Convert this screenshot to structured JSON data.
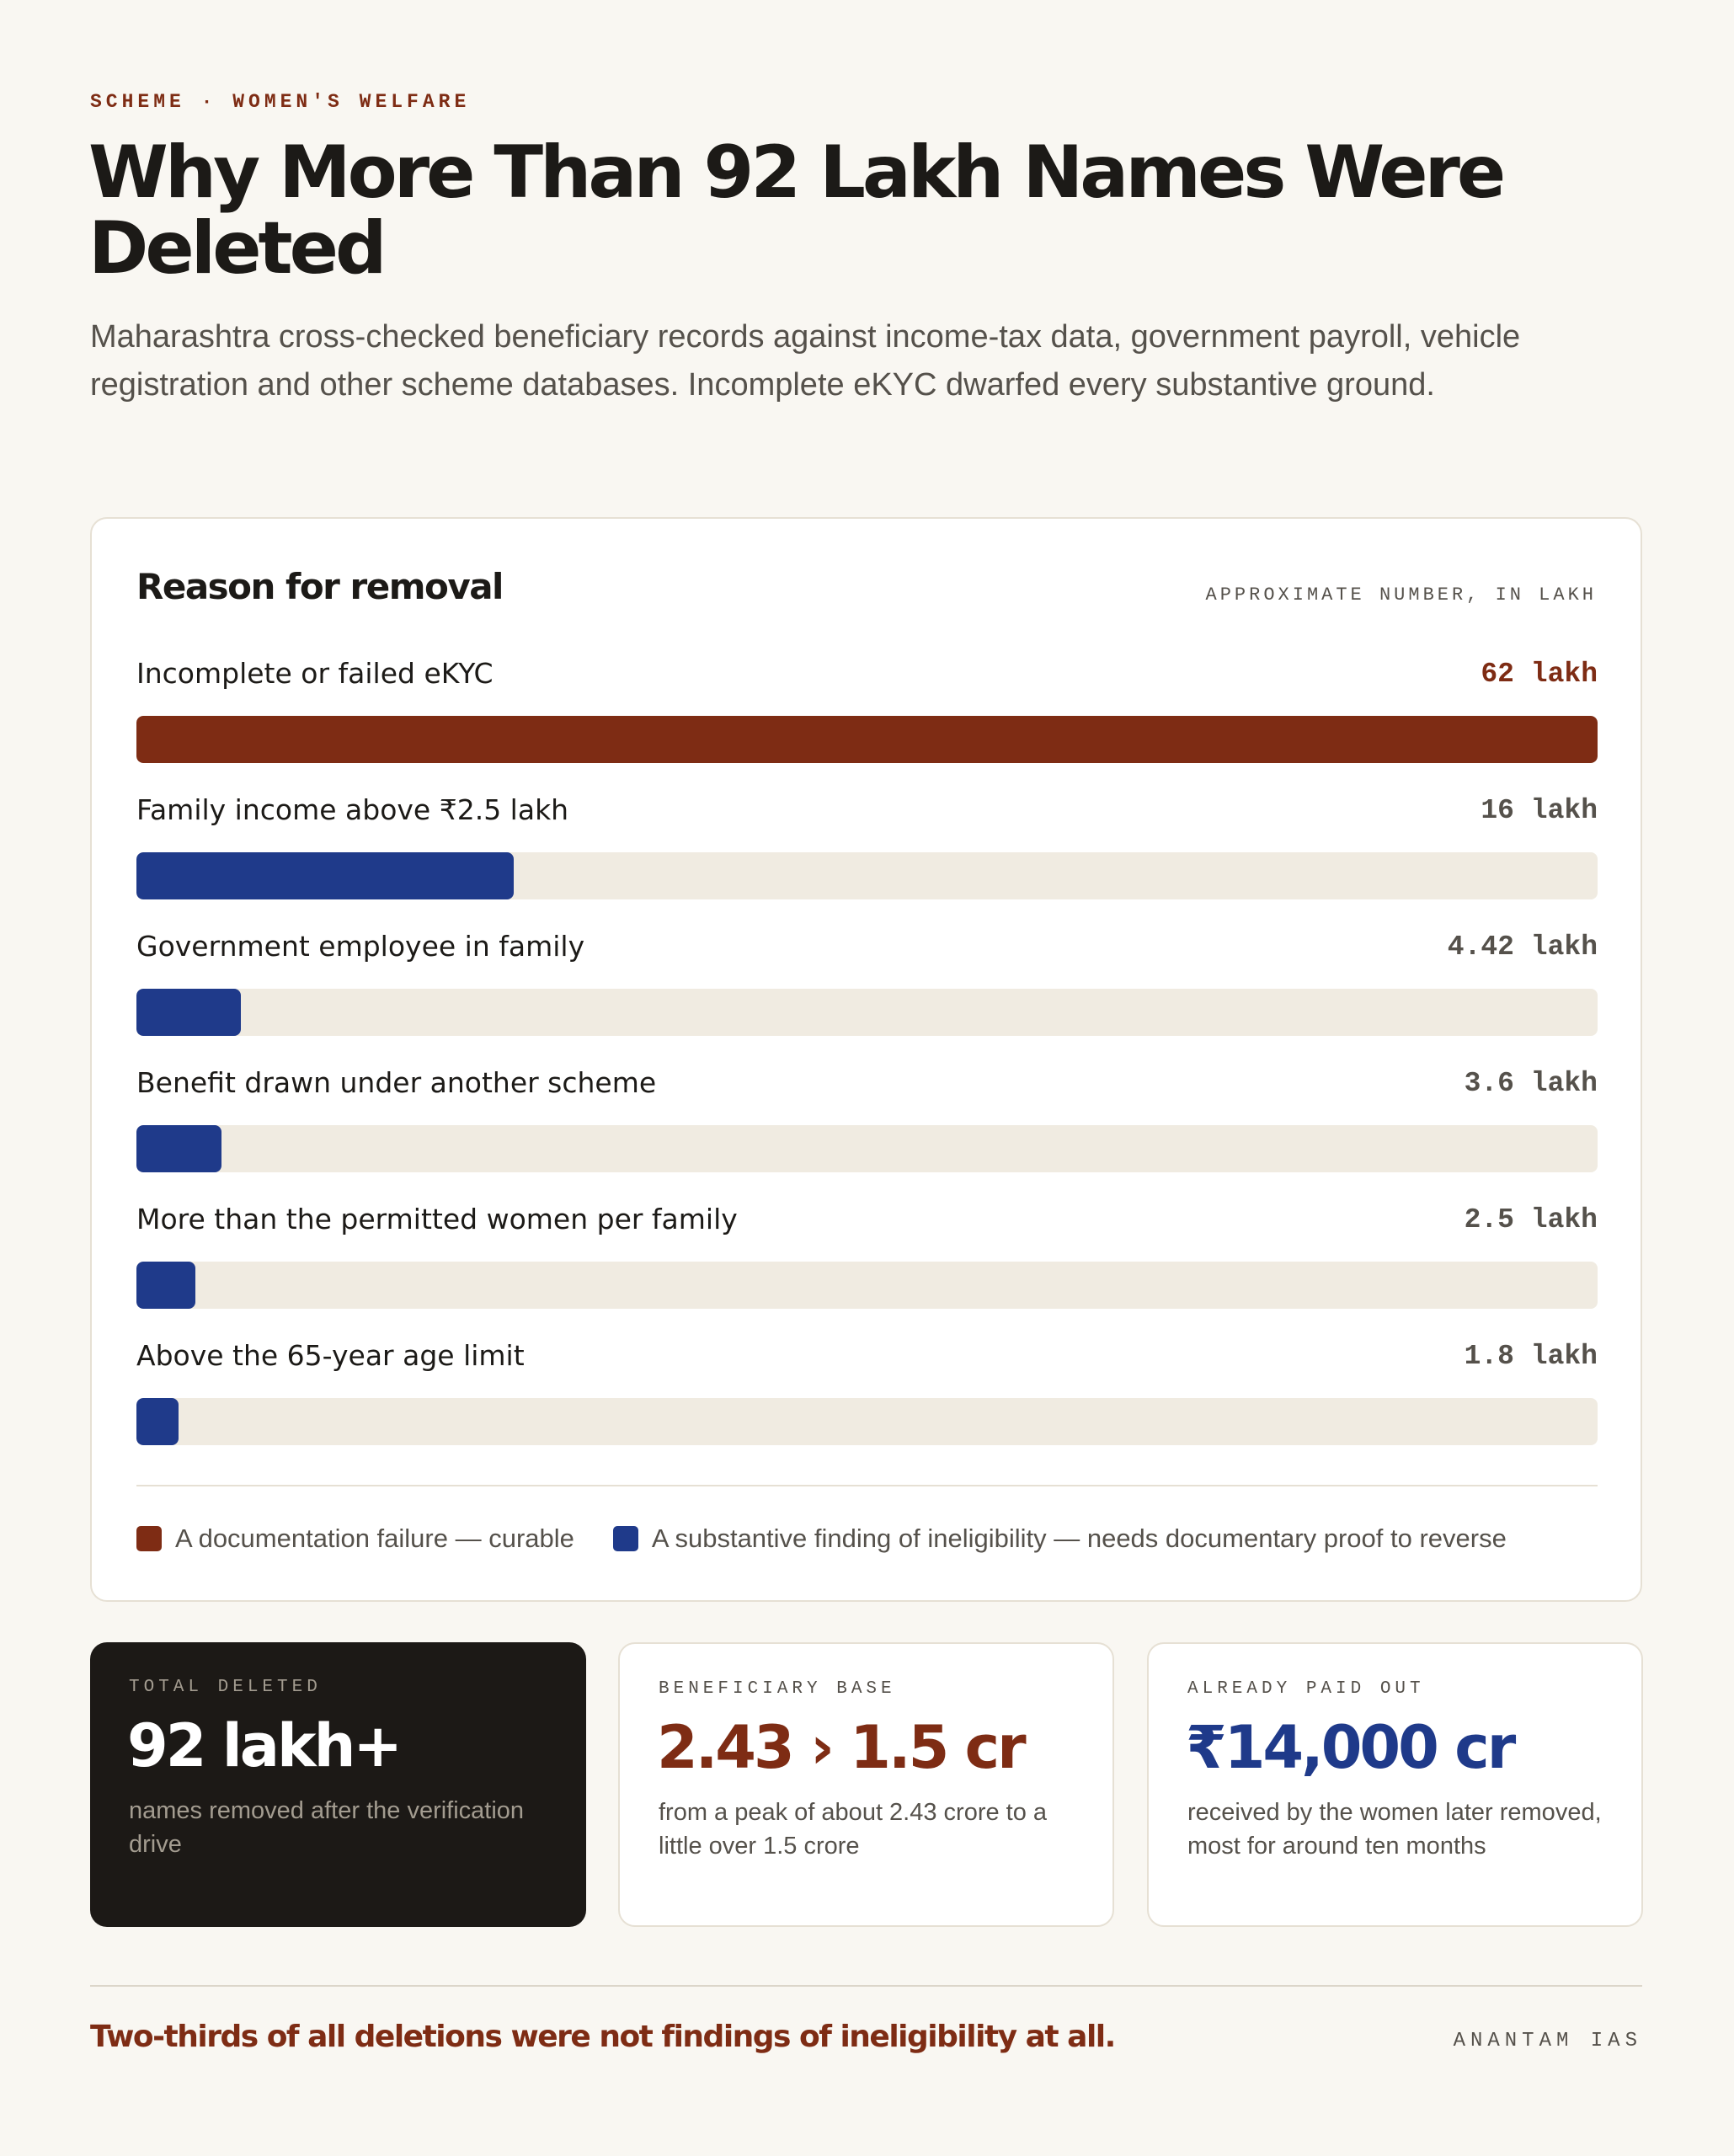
{
  "header": {
    "eyebrow": "SCHEME · WOMEN'S WELFARE",
    "title": "Why More Than 92 Lakh Names Were Deleted",
    "subtitle": "Maharashtra cross-checked beneficiary records against income-tax data, government payroll, vehicle registration and other scheme databases. Incomplete eKYC dwarfed every substantive ground."
  },
  "colors": {
    "documentation": "#7e2c14",
    "ineligibility": "#1f3a8a",
    "track": "#f0ebe1"
  },
  "chart_data": {
    "type": "bar",
    "orientation": "horizontal",
    "title": "Reason for removal",
    "unit_note": "APPROXIMATE NUMBER, IN LAKH",
    "categories": [
      "Incomplete or failed eKYC",
      "Family income above ₹2.5 lakh",
      "Government employee in family",
      "Benefit drawn under another scheme",
      "More than the permitted women per family",
      "Above the 65-year age limit"
    ],
    "values": [
      62,
      16,
      4.42,
      3.6,
      2.5,
      1.8
    ],
    "value_labels": [
      "62 lakh",
      "16 lakh",
      "4.42 lakh",
      "3.6 lakh",
      "2.5 lakh",
      "1.8 lakh"
    ],
    "groups": [
      "documentation",
      "ineligibility",
      "ineligibility",
      "ineligibility",
      "ineligibility",
      "ineligibility"
    ],
    "xlim": [
      0,
      62
    ],
    "legend": [
      {
        "key": "documentation",
        "label": "A documentation failure — curable"
      },
      {
        "key": "ineligibility",
        "label": "A substantive finding of ineligibility — needs documentary proof to reverse"
      }
    ]
  },
  "stats": [
    {
      "label": "TOTAL DELETED",
      "value": "92 lakh+",
      "desc": "names removed after the verification drive"
    },
    {
      "label": "BENEFICIARY BASE",
      "value": "2.43 › 1.5 cr",
      "desc": "from a peak of about 2.43 crore to a little over 1.5 crore"
    },
    {
      "label": "ALREADY PAID OUT",
      "value": "₹14,000 cr",
      "desc": "received by the women later removed, most for around ten months"
    }
  ],
  "footer": {
    "takeaway": "Two-thirds of all deletions were not findings of ineligibility at all.",
    "brand": "ANANTAM IAS"
  }
}
